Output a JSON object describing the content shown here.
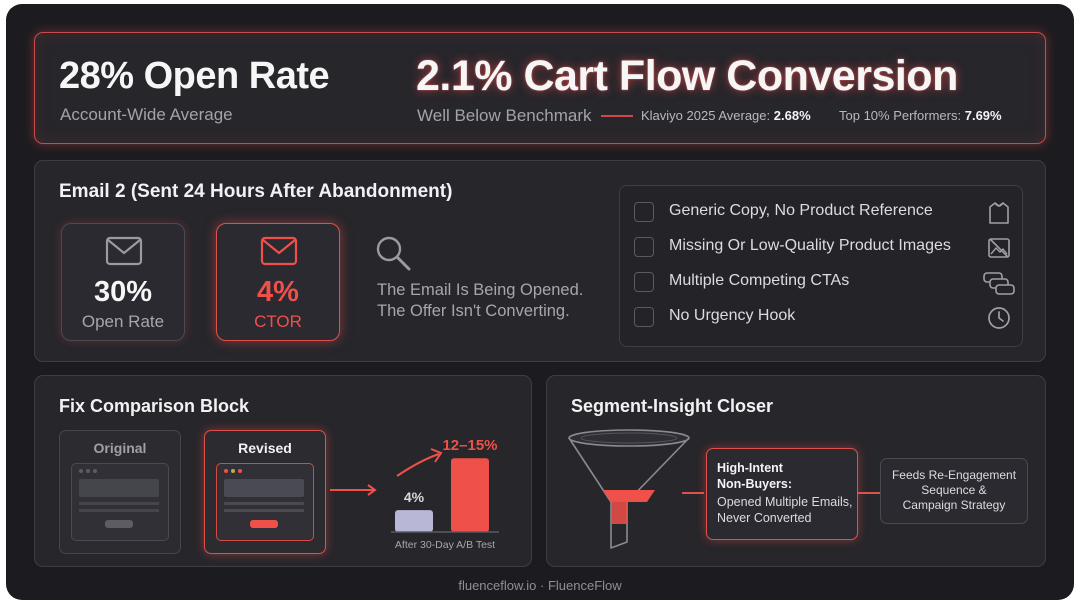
{
  "header": {
    "open_rate_title": "28% Open Rate",
    "open_rate_sub": "Account-Wide Average",
    "conversion_title": "2.1% Cart Flow Conversion",
    "conversion_sub": "Well Below Benchmark",
    "klaviyo_label": "Klaviyo 2025 Average:",
    "klaviyo_value": "2.68%",
    "top10_label": "Top 10% Performers:",
    "top10_value": "7.69%"
  },
  "email2": {
    "title": "Email 2 (Sent 24 Hours After Abandonment)",
    "open_rate_value": "30%",
    "open_rate_label": "Open Rate",
    "ctor_value": "4%",
    "ctor_label": "CTOR",
    "insight_line1": "The Email Is Being Opened.",
    "insight_line2": "The Offer Isn't Converting.",
    "issues": [
      {
        "label": "Generic Copy, No Product Reference",
        "icon": "shirt-icon"
      },
      {
        "label": "Missing Or Low-Quality Product Images",
        "icon": "broken-image-icon"
      },
      {
        "label": "Multiple Competing CTAs",
        "icon": "stacked-buttons-icon"
      },
      {
        "label": "No Urgency Hook",
        "icon": "clock-icon"
      }
    ]
  },
  "fix": {
    "title": "Fix Comparison Block",
    "original_label": "Original",
    "revised_label": "Revised",
    "before_label": "4%",
    "after_label": "12–15%",
    "caption": "After 30-Day A/B Test",
    "accent": "#f0504a"
  },
  "chart_data": {
    "type": "bar",
    "categories": [
      "Original",
      "Revised"
    ],
    "values": [
      4,
      13.5
    ],
    "value_labels": [
      "4%",
      "12–15%"
    ],
    "xlabel": "After 30-Day A/B Test",
    "ylim": [
      0,
      15
    ]
  },
  "segment": {
    "title": "Segment-Insight Closer",
    "box_title_line1": "High-Intent",
    "box_title_line2": "Non-Buyers:",
    "box_body_line1": "Opened Multiple Emails,",
    "box_body_line2": "Never Converted",
    "feed_line1": "Feeds Re-Engagement",
    "feed_line2": "Sequence &",
    "feed_line3": "Campaign Strategy"
  },
  "footer": {
    "text": "fluenceflow.io · FluenceFlow"
  }
}
